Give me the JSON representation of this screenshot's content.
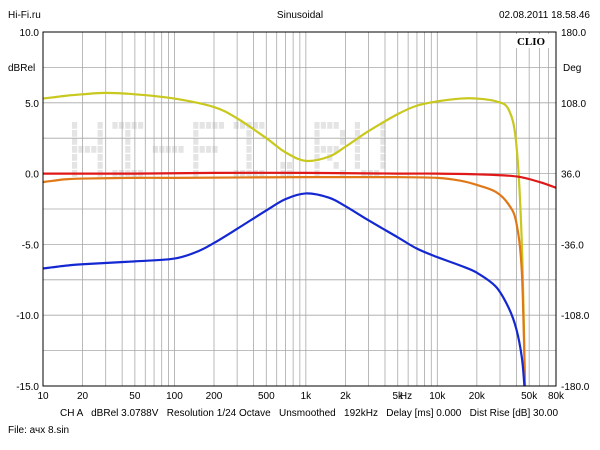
{
  "header": {
    "site": "Hi-Fi.ru",
    "mode": "Sinusoidal",
    "timestamp": "02.08.2011 18.58.46"
  },
  "brand": "CLIO",
  "footer": {
    "info_line": "CH A   dBRel 3.0788V   Resolution 1/24 Octave   Unsmoothed   192kHz   Delay [ms] 0.000   Dist Rise [dB] 30.00",
    "file_line": "File: ачх 8.sin"
  },
  "watermark": "HI-FI.RU",
  "chart_data": {
    "type": "line",
    "x_scale": "log",
    "xlim": [
      10,
      80000
    ],
    "ylim_left": [
      -15,
      10
    ],
    "ylim_right": [
      -180,
      180
    ],
    "ylabel_left": "dBRel",
    "ylabel_right": "Deg",
    "xlabel_unit": "Hz",
    "grid": true,
    "x_tick_labels": [
      {
        "value": 10,
        "label": "10"
      },
      {
        "value": 20,
        "label": "20"
      },
      {
        "value": 50,
        "label": "50"
      },
      {
        "value": 100,
        "label": "100"
      },
      {
        "value": 200,
        "label": "200"
      },
      {
        "value": 500,
        "label": "500"
      },
      {
        "value": 1000,
        "label": "1k"
      },
      {
        "value": 2000,
        "label": "2k"
      },
      {
        "value": 5000,
        "label": "5k"
      },
      {
        "value": 10000,
        "label": "10k"
      },
      {
        "value": 20000,
        "label": "20k"
      },
      {
        "value": 50000,
        "label": "50k"
      },
      {
        "value": 80000,
        "label": "80k"
      }
    ],
    "y_left_ticks": [
      {
        "value": 10,
        "label": "10.0"
      },
      {
        "value": 5,
        "label": "5.0"
      },
      {
        "value": 0,
        "label": "0.0"
      },
      {
        "value": -5,
        "label": "-5.0"
      },
      {
        "value": -10,
        "label": "-10.0"
      },
      {
        "value": -15,
        "label": "-15.0"
      }
    ],
    "y_right_ticks": [
      {
        "value": 180,
        "label": "180.0"
      },
      {
        "value": 108,
        "label": "108.0"
      },
      {
        "value": 36,
        "label": "36.0"
      },
      {
        "value": -36,
        "label": "-36.0"
      },
      {
        "value": -108,
        "label": "-108.0"
      },
      {
        "value": -180,
        "label": "-180.0"
      }
    ],
    "series": [
      {
        "color": "#c8c81e",
        "points": [
          [
            10,
            5.3
          ],
          [
            15,
            5.5
          ],
          [
            20,
            5.6
          ],
          [
            30,
            5.7
          ],
          [
            50,
            5.6
          ],
          [
            100,
            5.3
          ],
          [
            200,
            4.7
          ],
          [
            300,
            3.9
          ],
          [
            500,
            2.5
          ],
          [
            700,
            1.5
          ],
          [
            1000,
            0.9
          ],
          [
            1500,
            1.2
          ],
          [
            2000,
            1.9
          ],
          [
            3000,
            3.0
          ],
          [
            5000,
            4.2
          ],
          [
            7000,
            4.8
          ],
          [
            10000,
            5.1
          ],
          [
            15000,
            5.3
          ],
          [
            20000,
            5.3
          ],
          [
            28000,
            5.1
          ],
          [
            35000,
            4.5
          ],
          [
            40000,
            2.0
          ],
          [
            44000,
            -5.0
          ],
          [
            46500,
            -15.0
          ]
        ]
      },
      {
        "color": "#e07818",
        "points": [
          [
            10,
            -0.6
          ],
          [
            12,
            -0.5
          ],
          [
            15,
            -0.4
          ],
          [
            20,
            -0.35
          ],
          [
            50,
            -0.3
          ],
          [
            100,
            -0.3
          ],
          [
            1000,
            -0.25
          ],
          [
            5000,
            -0.25
          ],
          [
            10000,
            -0.3
          ],
          [
            15000,
            -0.5
          ],
          [
            20000,
            -0.8
          ],
          [
            28000,
            -1.3
          ],
          [
            35000,
            -2.2
          ],
          [
            40000,
            -3.5
          ],
          [
            44000,
            -7.0
          ],
          [
            46500,
            -15.0
          ]
        ]
      },
      {
        "color": "#e01818",
        "points": [
          [
            10,
            0.0
          ],
          [
            50,
            0.0
          ],
          [
            200,
            0.05
          ],
          [
            1000,
            0.05
          ],
          [
            5000,
            0.0
          ],
          [
            10000,
            0.0
          ],
          [
            20000,
            -0.05
          ],
          [
            40000,
            -0.2
          ],
          [
            60000,
            -0.6
          ],
          [
            80000,
            -1.0
          ]
        ]
      },
      {
        "color": "#1428d2",
        "points": [
          [
            10,
            -6.7
          ],
          [
            15,
            -6.5
          ],
          [
            20,
            -6.4
          ],
          [
            50,
            -6.2
          ],
          [
            100,
            -6.0
          ],
          [
            150,
            -5.5
          ],
          [
            200,
            -4.9
          ],
          [
            300,
            -3.9
          ],
          [
            500,
            -2.6
          ],
          [
            700,
            -1.8
          ],
          [
            1000,
            -1.4
          ],
          [
            1500,
            -1.7
          ],
          [
            2000,
            -2.3
          ],
          [
            3000,
            -3.3
          ],
          [
            5000,
            -4.5
          ],
          [
            7000,
            -5.3
          ],
          [
            10000,
            -5.9
          ],
          [
            15000,
            -6.5
          ],
          [
            20000,
            -7.0
          ],
          [
            28000,
            -8.0
          ],
          [
            35000,
            -9.5
          ],
          [
            40000,
            -11.0
          ],
          [
            44000,
            -13.0
          ],
          [
            46000,
            -15.0
          ]
        ]
      }
    ]
  }
}
